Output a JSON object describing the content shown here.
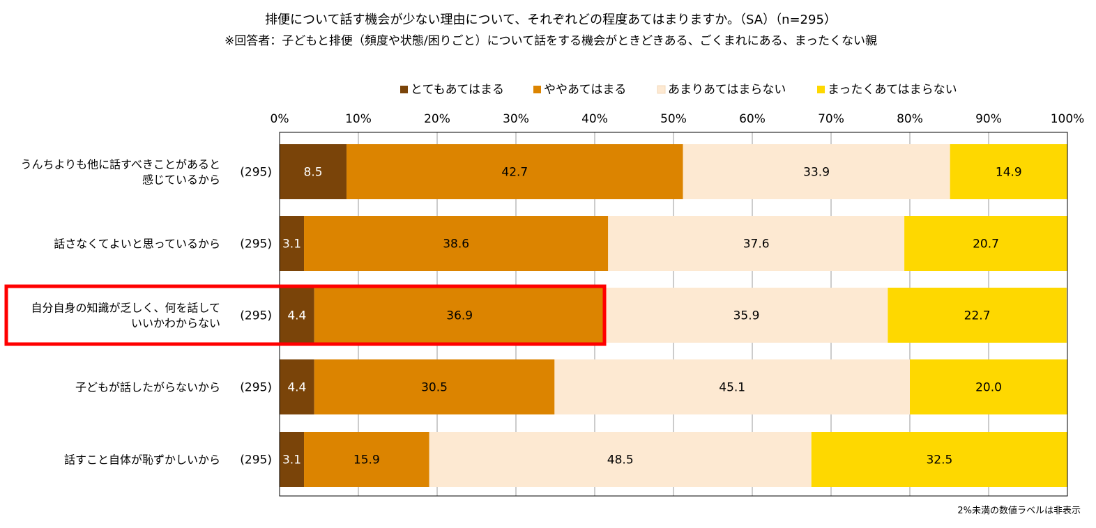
{
  "chart_data": {
    "type": "bar",
    "orientation": "horizontal",
    "stacked": true,
    "title": "排便について話す機会が少ない理由について、それぞれどの程度あてはまりますか。（SA）（n=295）",
    "subtitle": "※回答者：子どもと排便（頻度や状態/困りごと）について話をする機会がときどきある、ごくまれにある、まったくない親",
    "note": "2%未満の数値ラベルは非表示",
    "legend_position": "top",
    "x_ticks": [
      "0%",
      "10%",
      "20%",
      "30%",
      "40%",
      "50%",
      "60%",
      "70%",
      "80%",
      "90%",
      "100%"
    ],
    "xlim": [
      0,
      100
    ],
    "grid": true,
    "categories": [
      [
        "うんちよりも他に話すべきことがあると",
        "感じているから"
      ],
      [
        "話さなくてよいと思っているから"
      ],
      [
        "自分自身の知識が乏しく、何を話して",
        "いいかわからない"
      ],
      [
        "子どもが話したがらないから"
      ],
      [
        "話すこと自体が恥ずかしいから"
      ]
    ],
    "n_labels": [
      "(295)",
      "(295)",
      "(295)",
      "(295)",
      "(295)"
    ],
    "highlight_index": 2,
    "highlight_color": "#ff0000",
    "series": [
      {
        "name": "とてもあてはまる",
        "color": "#7a4409",
        "label_color": "#ffffff",
        "values": [
          8.5,
          3.1,
          4.4,
          4.4,
          3.1
        ],
        "labels": [
          "8.5",
          "3.1",
          "4.4",
          "4.4",
          "3.1"
        ]
      },
      {
        "name": "ややあてはまる",
        "color": "#dc8400",
        "label_color": "#000000",
        "values": [
          42.7,
          38.6,
          36.9,
          30.5,
          15.9
        ],
        "labels": [
          "42.7",
          "38.6",
          "36.9",
          "30.5",
          "15.9"
        ]
      },
      {
        "name": "あまりあてはまらない",
        "color": "#fde9d2",
        "label_color": "#000000",
        "values": [
          33.9,
          37.6,
          35.9,
          45.1,
          48.5
        ],
        "labels": [
          "33.9",
          "37.6",
          "35.9",
          "45.1",
          "48.5"
        ]
      },
      {
        "name": "まったくあてはまらない",
        "color": "#fed800",
        "label_color": "#000000",
        "values": [
          14.9,
          20.7,
          22.7,
          20.0,
          32.5
        ],
        "labels": [
          "14.9",
          "20.7",
          "22.7",
          "20.0",
          "32.5"
        ]
      }
    ]
  }
}
